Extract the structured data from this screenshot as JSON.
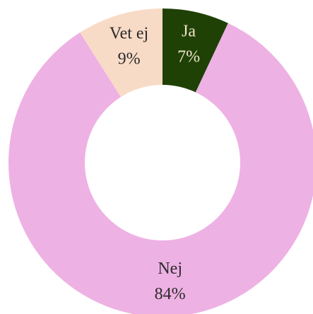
{
  "chart_data": {
    "type": "donut",
    "categories": [
      "Ja",
      "Nej",
      "Vet ej"
    ],
    "values": [
      7,
      84,
      9
    ],
    "value_labels": [
      "7%",
      "84%",
      "9%"
    ],
    "colors": [
      "#1f4106",
      "#eeb1e4",
      "#f8dbc6"
    ]
  }
}
